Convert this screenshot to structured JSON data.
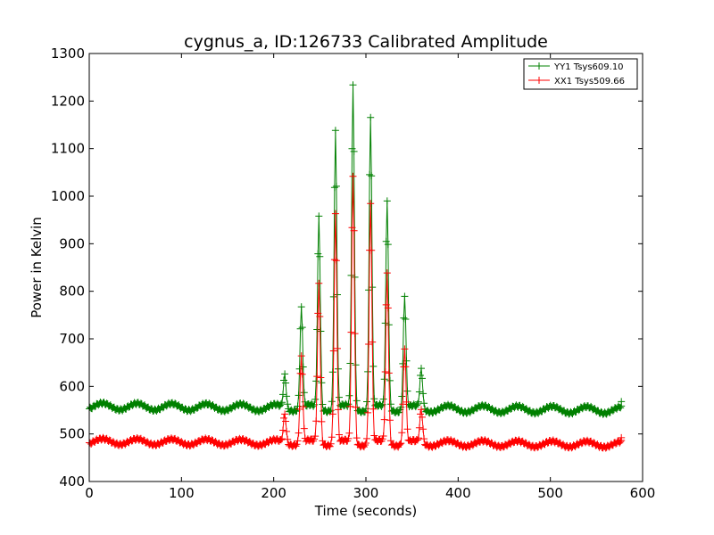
{
  "chart_data": {
    "type": "line",
    "title": "cygnus_a, ID:126733 Calibrated Amplitude",
    "xlabel": "Time (seconds)",
    "ylabel": "Power in Kelvin",
    "xlim": [
      0,
      600
    ],
    "ylim": [
      400,
      1300
    ],
    "xticks": [
      0,
      100,
      200,
      300,
      400,
      500,
      600
    ],
    "yticks": [
      400,
      500,
      600,
      700,
      800,
      900,
      1000,
      1100,
      1200,
      1300
    ],
    "grid": false,
    "legend_position": "top-right",
    "marker": "+",
    "series": [
      {
        "name": "YY1 Tsys609.10",
        "color": "#008000",
        "baseline_mean": 558,
        "baseline_ripple_amplitude": 7,
        "ripple_period_seconds": 37.5,
        "drift_to_end": -8,
        "x_range": [
          0,
          577
        ],
        "peaks": [
          {
            "x": 212,
            "y": 628
          },
          {
            "x": 230,
            "y": 768
          },
          {
            "x": 249,
            "y": 960
          },
          {
            "x": 267,
            "y": 1140
          },
          {
            "x": 286,
            "y": 1236
          },
          {
            "x": 305,
            "y": 1170
          },
          {
            "x": 323,
            "y": 992
          },
          {
            "x": 342,
            "y": 795
          },
          {
            "x": 360,
            "y": 640
          }
        ],
        "end_point": {
          "x": 577,
          "y": 568
        }
      },
      {
        "name": "XX1 Tsys509.66",
        "color": "#ff0000",
        "baseline_mean": 484,
        "baseline_ripple_amplitude": 6,
        "ripple_period_seconds": 37.5,
        "drift_to_end": -6,
        "x_range": [
          0,
          577
        ],
        "peaks": [
          {
            "x": 212,
            "y": 545
          },
          {
            "x": 230,
            "y": 665
          },
          {
            "x": 249,
            "y": 820
          },
          {
            "x": 267,
            "y": 965
          },
          {
            "x": 286,
            "y": 1045
          },
          {
            "x": 305,
            "y": 990
          },
          {
            "x": 323,
            "y": 842
          },
          {
            "x": 342,
            "y": 685
          },
          {
            "x": 360,
            "y": 555
          }
        ],
        "end_point": {
          "x": 577,
          "y": 492
        }
      }
    ]
  }
}
